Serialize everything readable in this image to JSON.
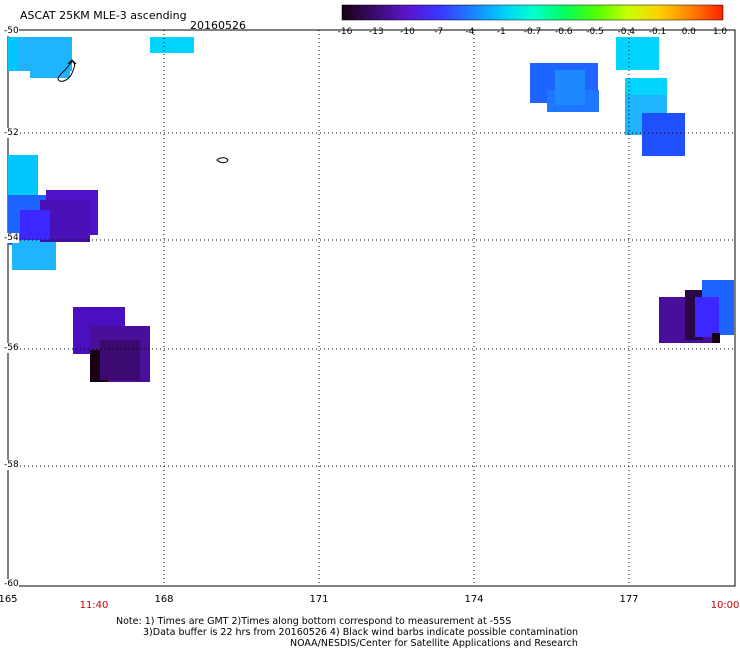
{
  "title": "ASCAT 25KM MLE-3 ascending",
  "date": "20160526",
  "colorbar": {
    "labels": [
      "-16",
      "-13",
      "-10",
      "-7",
      "-4",
      "-1",
      "-0.7",
      "-0.6",
      "-0.5",
      "-0.4",
      "-0.1",
      "0.0",
      "1.0"
    ],
    "gradient": [
      "#1a0010",
      "#3a0a6a",
      "#5a14c8",
      "#3c32ff",
      "#1e78ff",
      "#00c8ff",
      "#00ffd0",
      "#00ff60",
      "#50ff00",
      "#c8ff00",
      "#ffd000",
      "#ff8000",
      "#ff2000"
    ]
  },
  "lat_labels": [
    "-50",
    "-52",
    "-54",
    "-56",
    "-58",
    "-60"
  ],
  "lon_labels": [
    "165",
    "168",
    "171",
    "174",
    "177"
  ],
  "times": {
    "left": "11:40",
    "right": "10:00"
  },
  "notes": [
    "Note: 1) Times are GMT 2)Times along bottom correspond to measurement at -55S",
    "3)Data buffer is 22 hrs from 20160526 4) Black wind barbs indicate possible contamination",
    "NOAA/NESDIS/Center for Satellite Applications and Research"
  ],
  "colors": {
    "cyan": "#00d4ff",
    "light_blue": "#1eb4ff",
    "blue": "#1e64ff",
    "royal": "#3c28ff",
    "indigo": "#5012c8",
    "purple": "#4a0fb4",
    "dark_purple": "#30085a",
    "near_black": "#1a0014"
  }
}
